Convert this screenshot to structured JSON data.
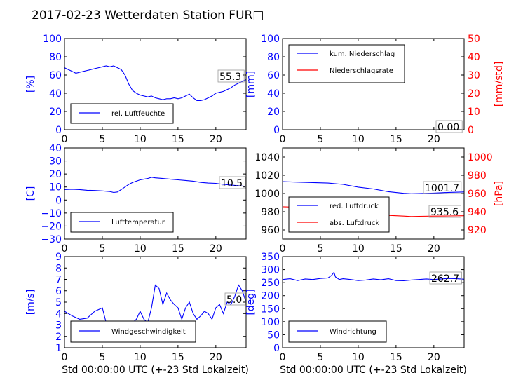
{
  "title": "2017-02-23 Wetterdaten Station FUR□",
  "colors": {
    "blue": "#0000ff",
    "red": "#ff0000",
    "lightblue": "#8080ff"
  },
  "chart_data": [
    {
      "type": "line",
      "ylabel": "[%]",
      "xlim": [
        0,
        24
      ],
      "ylim": [
        0,
        100
      ],
      "xticks": [
        "0",
        "5",
        "10",
        "15",
        "20"
      ],
      "yticks": [
        "0",
        "20",
        "40",
        "60",
        "80",
        "100"
      ],
      "legend": [
        "rel. Luftfeuchte"
      ],
      "legend_placement": "lower-left",
      "current_value": "55.3",
      "series": [
        {
          "name": "rel. Luftfeuchte",
          "color": "#0000ff",
          "x": [
            0,
            0.5,
            1,
            1.5,
            2,
            2.5,
            3,
            3.5,
            4,
            4.5,
            5,
            5.5,
            6,
            6.5,
            7,
            7.5,
            8,
            8.5,
            9,
            9.5,
            10,
            10.5,
            11,
            11.5,
            12,
            12.5,
            13,
            13.5,
            14,
            14.5,
            15,
            15.5,
            16,
            16.5,
            17,
            17.5,
            18,
            18.5,
            19,
            19.5,
            20,
            20.5,
            21,
            21.5,
            22,
            22.5,
            23,
            23.5,
            24
          ],
          "y": [
            68,
            66,
            64,
            62,
            63,
            64,
            65,
            66,
            67,
            68,
            69,
            70,
            69,
            70,
            68,
            66,
            60,
            50,
            43,
            40,
            38,
            37,
            36,
            37,
            35,
            34,
            33,
            34,
            34,
            35,
            34,
            35,
            37,
            39,
            35,
            32,
            32,
            33,
            35,
            37,
            40,
            41,
            42,
            44,
            46,
            49,
            51,
            53,
            55
          ]
        }
      ]
    },
    {
      "type": "line",
      "ylabel": "[mm]",
      "y2label": "[mm/std]",
      "xlim": [
        0,
        24
      ],
      "ylim": [
        0,
        100
      ],
      "y2lim": [
        0,
        50
      ],
      "xticks": [
        "0",
        "5",
        "10",
        "15",
        "20"
      ],
      "yticks": [
        "0",
        "20",
        "40",
        "60",
        "80",
        "100"
      ],
      "y2ticks": [
        "0",
        "10",
        "20",
        "30",
        "40",
        "50"
      ],
      "legend": [
        "kum. Niederschlag",
        "Niederschlagsrate"
      ],
      "legend_placement": "top-left",
      "current_value": "0.00",
      "series": [
        {
          "name": "kum. Niederschlag",
          "color": "#0000ff",
          "axis": "left",
          "x": [
            0,
            24
          ],
          "y": [
            0,
            0
          ]
        },
        {
          "name": "Niederschlagsrate",
          "color": "#ff0000",
          "axis": "right",
          "x": [
            0,
            24
          ],
          "y": [
            0,
            0
          ]
        }
      ]
    },
    {
      "type": "line",
      "ylabel": "[C]",
      "xlim": [
        0,
        24
      ],
      "ylim": [
        -30,
        40
      ],
      "xticks": [
        "0",
        "5",
        "10",
        "15",
        "20"
      ],
      "yticks": [
        "−30",
        "−20",
        "−10",
        "0",
        "10",
        "20",
        "30",
        "40"
      ],
      "legend": [
        "Lufttemperatur"
      ],
      "legend_placement": "lower-left",
      "current_value": "10.5",
      "series": [
        {
          "name": "Lufttemperatur",
          "color": "#0000ff",
          "x": [
            0,
            1,
            2,
            3,
            4,
            5,
            6,
            6.5,
            7,
            7.5,
            8,
            8.5,
            9,
            9.5,
            10,
            10.5,
            11,
            11.5,
            12,
            13,
            14,
            15,
            16,
            17,
            18,
            19,
            20,
            21,
            22,
            23,
            24
          ],
          "y": [
            8,
            8.3,
            8,
            7.5,
            7.3,
            7,
            6.5,
            5.8,
            6.2,
            8,
            10,
            12,
            13.5,
            14.5,
            15.5,
            16,
            16.5,
            17.5,
            17,
            16.5,
            16,
            15.5,
            15,
            14.5,
            13.5,
            13,
            12.8,
            12,
            11.5,
            11,
            10.5
          ]
        }
      ]
    },
    {
      "type": "line",
      "ylabel": "",
      "y2label": "[hPa]",
      "xlim": [
        0,
        24
      ],
      "ylim": [
        950,
        1050
      ],
      "y2lim": [
        910,
        1010
      ],
      "xticks": [
        "0",
        "5",
        "10",
        "15",
        "20"
      ],
      "yticks": [
        "960",
        "980",
        "1000",
        "1020",
        "1040"
      ],
      "y2ticks": [
        "920",
        "940",
        "960",
        "980",
        "1000"
      ],
      "legend": [
        "red. Luftdruck",
        "abs. Luftdruck"
      ],
      "legend_placement": "lower-left",
      "current_value": "1001.7",
      "current_value_2": "935.6",
      "series": [
        {
          "name": "red. Luftdruck",
          "color": "#0000ff",
          "axis": "left",
          "x": [
            0,
            2,
            4,
            6,
            8,
            10,
            12,
            14,
            16,
            17,
            18,
            20,
            22,
            24
          ],
          "y": [
            1013,
            1012.5,
            1012,
            1011.5,
            1010,
            1007,
            1005,
            1002,
            1000.2,
            999.8,
            1000,
            1000.5,
            1001.2,
            1001.7
          ]
        },
        {
          "name": "abs. Luftdruck",
          "color": "#ff0000",
          "axis": "right",
          "x": [
            0,
            2,
            4,
            6,
            8,
            10,
            12,
            14,
            16,
            17,
            18,
            20,
            22,
            24
          ],
          "y": [
            945.5,
            945,
            944.5,
            944,
            942.5,
            940,
            938,
            936,
            935.2,
            934.8,
            935,
            935.2,
            935.4,
            935.6
          ]
        }
      ]
    },
    {
      "type": "line",
      "ylabel": "[m/s]",
      "xlabel": "Std 00:00:00 UTC (+-23 Std Lokalzeit)",
      "xlim": [
        0,
        24
      ],
      "ylim": [
        1,
        9
      ],
      "xticks": [
        "0",
        "5",
        "10",
        "15",
        "20"
      ],
      "yticks": [
        "1",
        "2",
        "3",
        "4",
        "5",
        "6",
        "7",
        "8",
        "9"
      ],
      "legend": [
        "Windgeschwindigkeit"
      ],
      "legend_placement": "lower-left",
      "current_value": "5.0",
      "series": [
        {
          "name": "Windgeschwindigkeit",
          "color": "#0000ff",
          "x": [
            0,
            1,
            2,
            3,
            4,
            5,
            5.5,
            6,
            6.5,
            7,
            7.5,
            8,
            8.5,
            9,
            9.5,
            10,
            10.5,
            11,
            11.5,
            12,
            12.5,
            13,
            13.5,
            14,
            14.5,
            15,
            15.5,
            16,
            16.5,
            17,
            17.5,
            18,
            18.5,
            19,
            19.5,
            20,
            20.5,
            21,
            21.5,
            22,
            22.5,
            23,
            23.5,
            24
          ],
          "y": [
            4.2,
            3.8,
            3.5,
            3.6,
            4.2,
            4.5,
            3.2,
            2.3,
            2.3,
            2.0,
            2.5,
            2.8,
            2.8,
            3.2,
            3.5,
            4.2,
            3.5,
            3.2,
            4.5,
            6.5,
            6.2,
            4.8,
            5.8,
            5.2,
            4.8,
            4.5,
            3.5,
            4.5,
            5.0,
            4.0,
            3.5,
            3.8,
            4.2,
            4.0,
            3.5,
            4.5,
            4.8,
            4.0,
            5.0,
            4.8,
            5.5,
            6.5,
            6.0,
            5.0
          ]
        }
      ]
    },
    {
      "type": "line",
      "ylabel": "[deg]",
      "xlabel": "Std 00:00:00 UTC (+-23 Std Lokalzeit)",
      "xlim": [
        0,
        24
      ],
      "ylim": [
        0,
        350
      ],
      "xticks": [
        "0",
        "5",
        "10",
        "15",
        "20"
      ],
      "yticks": [
        "0",
        "50",
        "100",
        "150",
        "200",
        "250",
        "300",
        "350"
      ],
      "legend": [
        "Windrichtung"
      ],
      "legend_placement": "lower-left",
      "current_value": "262.7",
      "series": [
        {
          "name": "Windrichtung",
          "color": "#0000ff",
          "x": [
            0,
            1,
            2,
            3,
            4,
            5,
            6,
            6.5,
            6.8,
            7,
            7.5,
            8,
            9,
            10,
            11,
            12,
            13,
            14,
            15,
            16,
            17,
            18,
            19,
            20,
            21,
            22,
            23,
            24
          ],
          "y": [
            262,
            265,
            258,
            264,
            262,
            266,
            268,
            278,
            290,
            272,
            262,
            265,
            262,
            258,
            260,
            264,
            261,
            265,
            258,
            257,
            260,
            262,
            264,
            262,
            264,
            266,
            265,
            263
          ]
        }
      ]
    }
  ]
}
